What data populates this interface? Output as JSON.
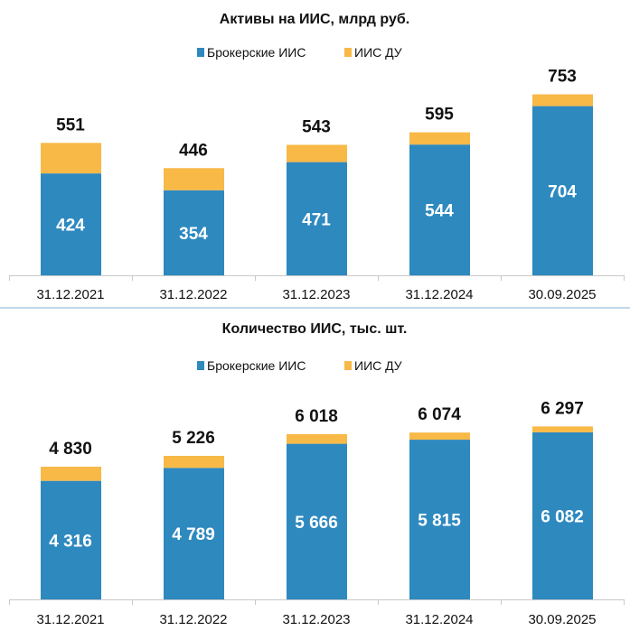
{
  "colors": {
    "brokerage": "#2E89BF",
    "du": "#F8B947",
    "axis": "#C8C8C8",
    "divider": "#7FB0D6"
  },
  "chart_data": [
    {
      "type": "bar",
      "stacked": true,
      "title": "Активы на ИИС, млрд руб.",
      "categories": [
        "31.12.2021",
        "31.12.2022",
        "31.12.2023",
        "31.12.2024",
        "30.09.2025"
      ],
      "series": [
        {
          "name": "Брокерские ИИС",
          "values": [
            424,
            354,
            471,
            544,
            704
          ],
          "labels": [
            "424",
            "354",
            "471",
            "544",
            "704"
          ]
        },
        {
          "name": "ИИС ДУ",
          "values": [
            127,
            92,
            72,
            51,
            49
          ]
        }
      ],
      "totals": [
        "551",
        "446",
        "543",
        "595",
        "753"
      ],
      "total_values": [
        551,
        446,
        543,
        595,
        753
      ],
      "ylim": [
        0,
        800
      ],
      "grid": false,
      "legend": "top"
    },
    {
      "type": "bar",
      "stacked": true,
      "title": "Количество ИИС, тыс. шт.",
      "categories": [
        "31.12.2021",
        "31.12.2022",
        "31.12.2023",
        "31.12.2024",
        "30.09.2025"
      ],
      "series": [
        {
          "name": "Брокерские ИИС",
          "values": [
            4316,
            4789,
            5666,
            5815,
            6082
          ],
          "labels": [
            "4 316",
            "4 789",
            "5 666",
            "5 815",
            "6 082"
          ]
        },
        {
          "name": "ИИС ДУ",
          "values": [
            514,
            437,
            352,
            259,
            215
          ]
        }
      ],
      "totals": [
        "4 830",
        "5 226",
        "6 018",
        "6 074",
        "6 297"
      ],
      "total_values": [
        4830,
        5226,
        6018,
        6074,
        6297
      ],
      "ylim": [
        0,
        7000
      ],
      "grid": false,
      "legend": "top"
    }
  ]
}
